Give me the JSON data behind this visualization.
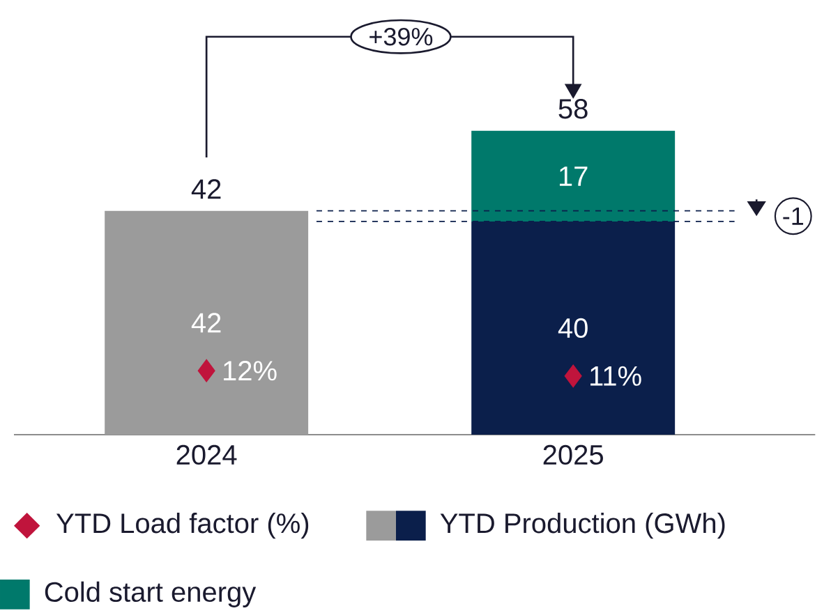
{
  "chart_data": {
    "type": "bar",
    "stacked": true,
    "categories": [
      "2024",
      "2025"
    ],
    "series": [
      {
        "name": "YTD Production (GWh)",
        "colors": [
          "#9b9b9b",
          "#0b1f4b"
        ],
        "values": [
          42,
          40
        ]
      },
      {
        "name": "Cold start energy",
        "color": "#00796b",
        "values": [
          null,
          17
        ]
      },
      {
        "name": "YTD Load factor (%)",
        "type": "scatter",
        "color": "#c0143c",
        "marker": "diamond",
        "values": [
          12,
          11
        ],
        "value_labels": [
          "12%",
          "11%"
        ]
      }
    ],
    "tick_labels": "x",
    "data_labels": true,
    "totals": [
      "42",
      "58"
    ],
    "ref_lines": [
      {
        "axis": "y",
        "value": 42,
        "line_style": "dashed",
        "color": "#0b1f4b"
      },
      {
        "axis": "y",
        "value": 40,
        "line_style": "dashed",
        "color": "#0b1f4b"
      }
    ],
    "annotations": [
      "+39%",
      "-1"
    ],
    "legend": "bottom"
  }
}
